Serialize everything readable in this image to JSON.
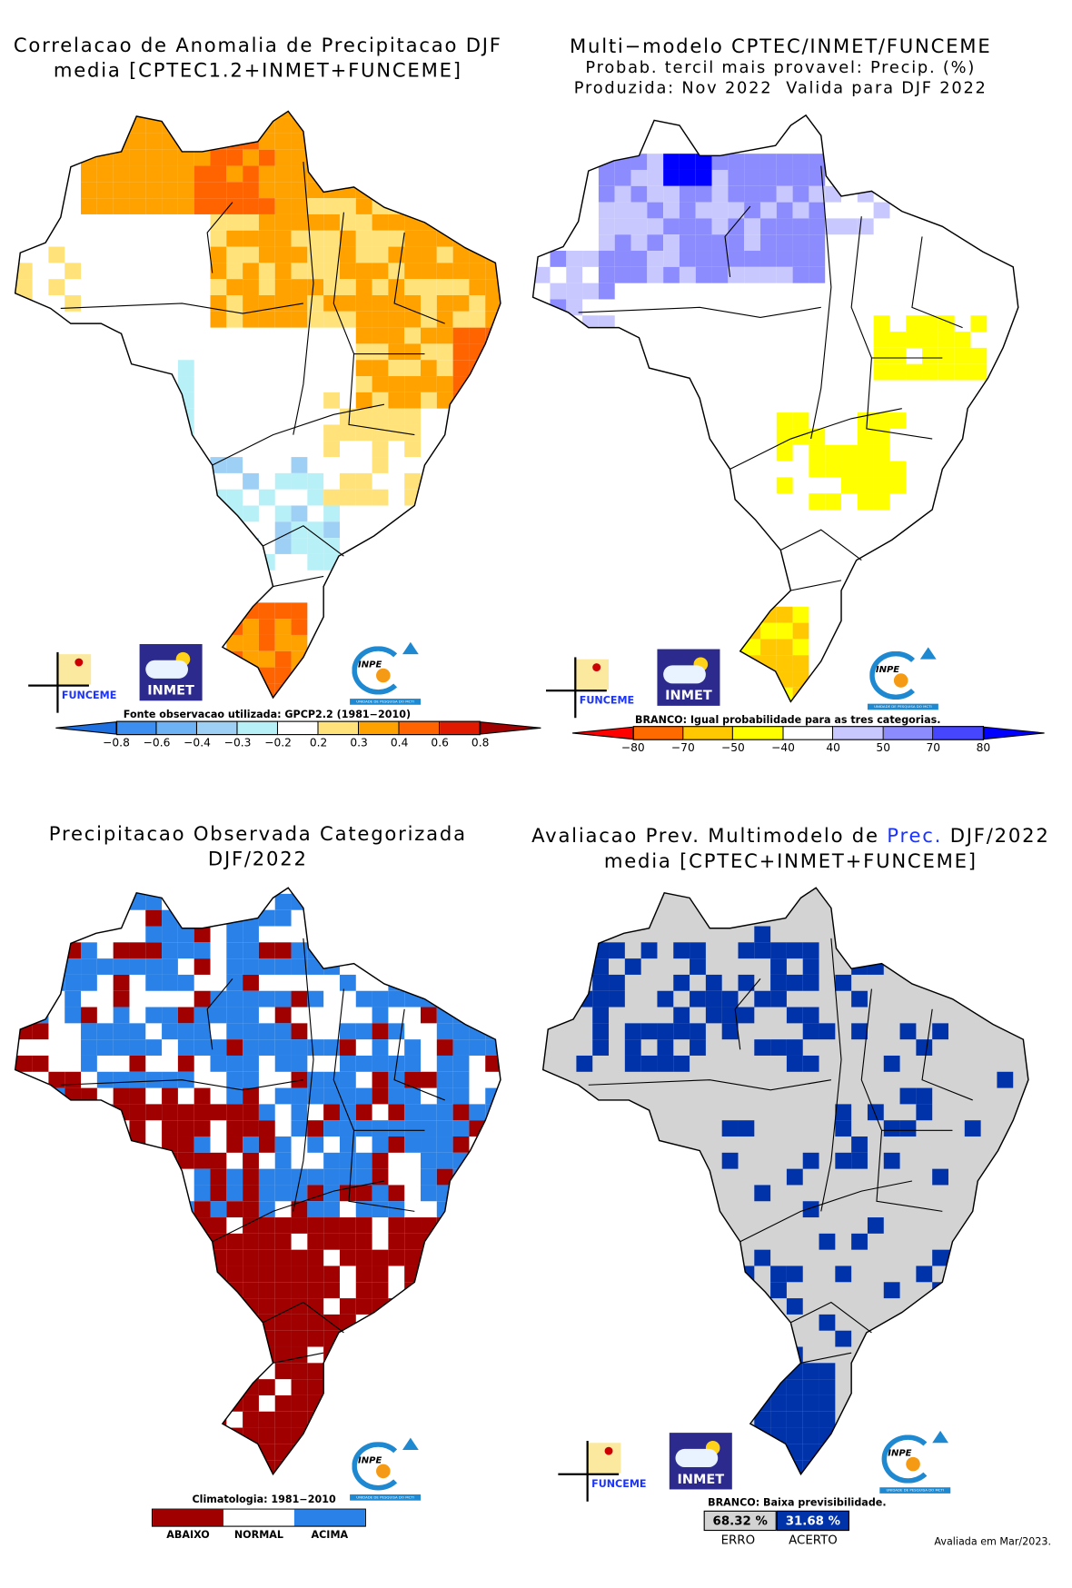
{
  "panels": {
    "correlation": {
      "title_line1": "Correlacao de Anomalia de Precipitacao DJF",
      "title_line2": "media [CPTEC1.2+INMET+FUNCEME]",
      "source_note": "Fonte observacao utilizada: GPCP2.2 (1981−2010)",
      "legend_ticks": [
        "−0.8",
        "−0.6",
        "−0.4",
        "−0.3",
        "−0.2",
        "0.2",
        "0.3",
        "0.4",
        "0.6",
        "0.8"
      ],
      "legend_colors": [
        "#1e6fe0",
        "#3c8ff0",
        "#6cb2f5",
        "#9ed0f5",
        "#b8f0f8",
        "#ffffff",
        "#ffe27a",
        "#ffa200",
        "#ff6400",
        "#e01a00",
        "#a00000"
      ]
    },
    "forecast": {
      "title_line1": "Multi−modelo CPTEC/INMET/FUNCEME",
      "title_line2": "Probab. tercil mais provavel: Precip. (%)",
      "title_line3": "Produzida: Nov 2022  Valida para DJF 2022",
      "note": "BRANCO: Igual probabilidade para as tres categorias.",
      "legend_ticks": [
        "−80",
        "−70",
        "−50",
        "−40",
        "40",
        "50",
        "70",
        "80"
      ],
      "legend_colors": [
        "#ff0000",
        "#ff6a00",
        "#ffc800",
        "#ffff00",
        "#ffffff",
        "#c8c8ff",
        "#8c8cff",
        "#4646ff",
        "#0000ff"
      ]
    },
    "observed": {
      "title_line1": "Precipitacao Observada Categorizada",
      "title_line2": "DJF/2022",
      "note": "Climatologia: 1981−2010",
      "categories": [
        {
          "label": "ABAIXO",
          "color": "#a00000"
        },
        {
          "label": "NORMAL",
          "color": "#ffffff"
        },
        {
          "label": "ACIMA",
          "color": "#2a82e8"
        }
      ]
    },
    "evaluation": {
      "title_prefix": "Avaliacao Prev. Multimodelo de ",
      "title_highlight": "Prec.",
      "title_suffix": " DJF/2022",
      "title_line2": "media [CPTEC+INMET+FUNCEME]",
      "note": "BRANCO: Baixa previsibilidade.",
      "erro_value": "68.32 %",
      "acerto_value": "31.68 %",
      "erro_label": "ERRO",
      "acerto_label": "ACERTO",
      "erro_color": "#d3d3d3",
      "acerto_color": "#0033aa",
      "evaluated": "Avaliada em Mar/2023."
    }
  },
  "logos": {
    "funceme": "FUNCEME",
    "inmet": "INMET",
    "inpe": "INPE",
    "inpe_sub": "UNIDADE DE PESQUISA DO MCTI"
  },
  "chart_data": [
    {
      "type": "heatmap",
      "title": "Correlacao de Anomalia de Precipitacao DJF media [CPTEC1.2+INMET+FUNCEME]",
      "color_scale_ticks": [
        -0.8,
        -0.6,
        -0.4,
        -0.3,
        -0.2,
        0.2,
        0.3,
        0.4,
        0.6,
        0.8
      ]
    },
    {
      "type": "heatmap",
      "title": "Multi-modelo CPTEC/INMET/FUNCEME Probab. tercil mais provavel: Precip. (%)",
      "color_scale_ticks": [
        -80,
        -70,
        -50,
        -40,
        40,
        50,
        70,
        80
      ]
    },
    {
      "type": "heatmap",
      "title": "Precipitacao Observada Categorizada DJF/2022",
      "categories": [
        "ABAIXO",
        "NORMAL",
        "ACIMA"
      ]
    },
    {
      "type": "heatmap",
      "title": "Avaliacao Prev. Multimodelo de Prec. DJF/2022",
      "categories": [
        "ERRO",
        "ACERTO"
      ],
      "values": [
        68.32,
        31.68
      ]
    }
  ]
}
